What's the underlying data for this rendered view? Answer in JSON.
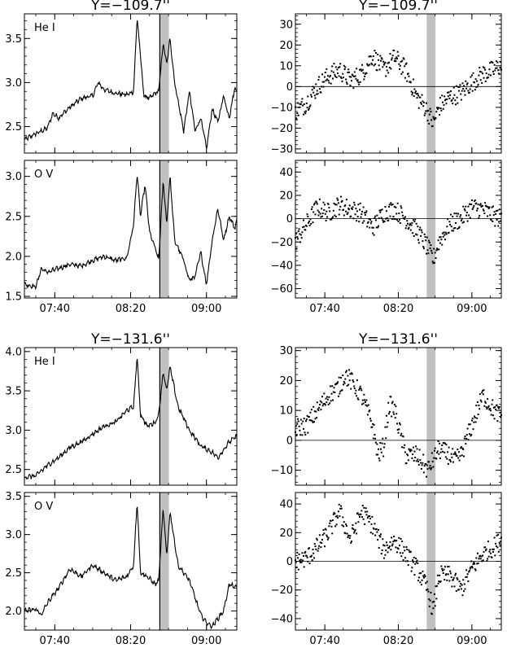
{
  "chart_data": [
    {
      "type": "line",
      "title": "Y=−109.7''",
      "label": "He I",
      "xlim": [
        7.4,
        9.2667
      ],
      "ylim": [
        2.2,
        3.78
      ],
      "xticks": [
        "07:40",
        "08:20",
        "09:00"
      ],
      "xtick_values": [
        7.6667,
        8.3333,
        9.0
      ],
      "yticks": [
        "2.5",
        "3.0",
        "3.5"
      ],
      "ytick_values": [
        2.5,
        3.0,
        3.5
      ],
      "shade": [
        8.59,
        8.67
      ],
      "marker_line": 8.59,
      "x": [
        7.4,
        7.5,
        7.6,
        7.65,
        7.7,
        7.8,
        7.9,
        8.0,
        8.05,
        8.1,
        8.2,
        8.3,
        8.36,
        8.39,
        8.42,
        8.45,
        8.5,
        8.55,
        8.58,
        8.62,
        8.65,
        8.68,
        8.72,
        8.8,
        8.85,
        8.9,
        8.95,
        9.0,
        9.05,
        9.1,
        9.15,
        9.2,
        9.25,
        9.2667
      ],
      "y": [
        2.35,
        2.42,
        2.48,
        2.65,
        2.6,
        2.72,
        2.82,
        2.85,
        3.0,
        2.92,
        2.88,
        2.86,
        2.9,
        3.75,
        3.3,
        2.85,
        2.82,
        2.88,
        2.9,
        3.45,
        3.2,
        3.5,
        3.0,
        2.45,
        2.9,
        2.45,
        2.6,
        2.25,
        2.7,
        2.55,
        2.85,
        2.6,
        2.95,
        2.9
      ]
    },
    {
      "type": "line",
      "title": "",
      "label": "O V",
      "xlim": [
        7.4,
        9.2667
      ],
      "ylim": [
        1.48,
        3.2
      ],
      "xticks": [
        "07:40",
        "08:20",
        "09:00"
      ],
      "xtick_values": [
        7.6667,
        8.3333,
        9.0
      ],
      "yticks": [
        "1.5",
        "2.0",
        "2.5",
        "3.0"
      ],
      "ytick_values": [
        1.5,
        2.0,
        2.5,
        3.0
      ],
      "shade": [
        8.59,
        8.67
      ],
      "marker_line": 8.59,
      "x": [
        7.4,
        7.5,
        7.55,
        7.6,
        7.7,
        7.8,
        7.9,
        8.0,
        8.1,
        8.2,
        8.3,
        8.36,
        8.39,
        8.42,
        8.46,
        8.5,
        8.55,
        8.58,
        8.62,
        8.65,
        8.68,
        8.72,
        8.8,
        8.85,
        8.9,
        8.95,
        9.0,
        9.05,
        9.1,
        9.15,
        9.2,
        9.25,
        9.2667
      ],
      "y": [
        1.65,
        1.62,
        1.85,
        1.8,
        1.85,
        1.9,
        1.88,
        1.95,
        2.0,
        1.95,
        1.98,
        2.4,
        3.05,
        2.5,
        2.9,
        2.3,
        2.1,
        1.95,
        2.95,
        2.4,
        3.0,
        2.2,
        1.95,
        1.7,
        1.75,
        2.05,
        1.65,
        2.2,
        2.6,
        2.2,
        2.5,
        2.35,
        2.45
      ]
    },
    {
      "type": "scatter",
      "title": "Y=−109.7''",
      "label": "",
      "xlim": [
        7.4,
        9.2667
      ],
      "ylim": [
        -32,
        35
      ],
      "xticks": [
        "07:40",
        "08:20",
        "09:00"
      ],
      "xtick_values": [
        7.6667,
        8.3333,
        9.0
      ],
      "yticks": [
        "−30",
        "−20",
        "−10",
        "0",
        "10",
        "20",
        "30"
      ],
      "ytick_values": [
        -30,
        -20,
        -10,
        0,
        10,
        20,
        30
      ],
      "shade": [
        8.59,
        8.67
      ],
      "zero_line": 0,
      "x": [
        7.4,
        7.5,
        7.6,
        7.7,
        7.8,
        7.9,
        8.0,
        8.1,
        8.2,
        8.3,
        8.4,
        8.5,
        8.55,
        8.6,
        8.65,
        8.7,
        8.8,
        8.9,
        9.0,
        9.1,
        9.2,
        9.2667
      ],
      "y": [
        -12,
        -8,
        0,
        5,
        8,
        3,
        6,
        15,
        8,
        14,
        8,
        -5,
        -8,
        -12,
        -18,
        -10,
        -5,
        -3,
        2,
        6,
        8,
        10
      ]
    },
    {
      "type": "scatter",
      "title": "",
      "label": "",
      "xlim": [
        7.4,
        9.2667
      ],
      "ylim": [
        -68,
        50
      ],
      "xticks": [
        "07:40",
        "08:20",
        "09:00"
      ],
      "xtick_values": [
        7.6667,
        8.3333,
        9.0
      ],
      "yticks": [
        "−60",
        "−40",
        "−20",
        "0",
        "20",
        "40"
      ],
      "ytick_values": [
        -60,
        -40,
        -20,
        0,
        20,
        40
      ],
      "shade": [
        8.59,
        8.67
      ],
      "zero_line": 0,
      "x": [
        7.4,
        7.5,
        7.6,
        7.7,
        7.8,
        7.9,
        8.0,
        8.1,
        8.2,
        8.3,
        8.4,
        8.5,
        8.6,
        8.65,
        8.7,
        8.8,
        8.9,
        9.0,
        9.1,
        9.2,
        9.2667
      ],
      "y": [
        -20,
        -5,
        10,
        5,
        12,
        8,
        5,
        -8,
        5,
        8,
        0,
        -10,
        -25,
        -35,
        -20,
        -5,
        0,
        10,
        8,
        2,
        0
      ]
    },
    {
      "type": "line",
      "title": "Y=−131.6''",
      "label": "He I",
      "xlim": [
        7.4,
        9.2667
      ],
      "ylim": [
        2.3,
        4.05
      ],
      "xticks": [
        "07:40",
        "08:20",
        "09:00"
      ],
      "xtick_values": [
        7.6667,
        8.3333,
        9.0
      ],
      "yticks": [
        "2.5",
        "3.0",
        "3.5",
        "4.0"
      ],
      "ytick_values": [
        2.5,
        3.0,
        3.5,
        4.0
      ],
      "shade": [
        8.59,
        8.67
      ],
      "marker_line": 8.59,
      "x": [
        7.4,
        7.5,
        7.6,
        7.7,
        7.8,
        7.9,
        8.0,
        8.1,
        8.2,
        8.3,
        8.36,
        8.39,
        8.42,
        8.48,
        8.55,
        8.58,
        8.62,
        8.65,
        8.68,
        8.75,
        8.85,
        8.95,
        9.05,
        9.1,
        9.2,
        9.2667
      ],
      "y": [
        2.4,
        2.42,
        2.55,
        2.65,
        2.78,
        2.85,
        2.95,
        3.05,
        3.1,
        3.25,
        3.3,
        3.95,
        3.2,
        3.05,
        3.1,
        3.2,
        3.75,
        3.5,
        3.8,
        3.3,
        3.0,
        2.8,
        2.72,
        2.65,
        2.85,
        2.92
      ]
    },
    {
      "type": "line",
      "title": "",
      "label": "O V",
      "xlim": [
        7.4,
        9.2667
      ],
      "ylim": [
        1.75,
        3.55
      ],
      "xticks": [
        "07:40",
        "08:20",
        "09:00"
      ],
      "xtick_values": [
        7.6667,
        8.3333,
        9.0
      ],
      "yticks": [
        "2.0",
        "2.5",
        "3.0",
        "3.5"
      ],
      "ytick_values": [
        2.0,
        2.5,
        3.0,
        3.5
      ],
      "shade": [
        8.59,
        8.67
      ],
      "marker_line": 8.59,
      "x": [
        7.4,
        7.5,
        7.55,
        7.6,
        7.7,
        7.8,
        7.9,
        8.0,
        8.1,
        8.2,
        8.3,
        8.36,
        8.39,
        8.42,
        8.48,
        8.55,
        8.58,
        8.62,
        8.65,
        8.68,
        8.75,
        8.85,
        8.95,
        9.0,
        9.05,
        9.15,
        9.2,
        9.2667
      ],
      "y": [
        2.0,
        2.02,
        1.95,
        2.1,
        2.3,
        2.55,
        2.45,
        2.6,
        2.5,
        2.4,
        2.45,
        2.6,
        3.45,
        2.5,
        2.45,
        2.35,
        2.4,
        3.35,
        2.7,
        3.3,
        2.6,
        2.4,
        1.95,
        1.85,
        1.8,
        2.0,
        2.35,
        2.3
      ]
    },
    {
      "type": "scatter",
      "title": "Y=−131.6''",
      "label": "",
      "xlim": [
        7.4,
        9.2667
      ],
      "ylim": [
        -15,
        31
      ],
      "xticks": [
        "07:40",
        "08:20",
        "09:00"
      ],
      "xtick_values": [
        7.6667,
        8.3333,
        9.0
      ],
      "yticks": [
        "−10",
        "0",
        "10",
        "20",
        "30"
      ],
      "ytick_values": [
        -10,
        0,
        10,
        20,
        30
      ],
      "shade": [
        8.59,
        8.67
      ],
      "zero_line": 0,
      "x": [
        7.4,
        7.5,
        7.6,
        7.7,
        7.8,
        7.85,
        7.9,
        8.0,
        8.1,
        8.15,
        8.2,
        8.25,
        8.3,
        8.4,
        8.5,
        8.6,
        8.7,
        8.8,
        8.85,
        8.9,
        9.0,
        9.1,
        9.2,
        9.2667
      ],
      "y": [
        4,
        5,
        10,
        15,
        18,
        22,
        20,
        15,
        5,
        -5,
        -2,
        12,
        10,
        -5,
        -5,
        -10,
        -3,
        -5,
        -7,
        -5,
        5,
        15,
        10,
        8
      ]
    },
    {
      "type": "scatter",
      "title": "",
      "label": "",
      "xlim": [
        7.4,
        9.2667
      ],
      "ylim": [
        -48,
        48
      ],
      "xticks": [
        "07:40",
        "08:20",
        "09:00"
      ],
      "xtick_values": [
        7.6667,
        8.3333,
        9.0
      ],
      "yticks": [
        "−40",
        "−20",
        "0",
        "20",
        "40"
      ],
      "ytick_values": [
        -40,
        -20,
        0,
        20,
        40
      ],
      "shade": [
        8.59,
        8.67
      ],
      "zero_line": 0,
      "x": [
        7.4,
        7.5,
        7.6,
        7.7,
        7.8,
        7.85,
        7.9,
        8.0,
        8.05,
        8.1,
        8.2,
        8.3,
        8.4,
        8.5,
        8.6,
        8.65,
        8.7,
        8.8,
        8.9,
        9.0,
        9.1,
        9.2,
        9.2667
      ],
      "y": [
        0,
        2,
        10,
        20,
        35,
        25,
        15,
        35,
        30,
        25,
        8,
        15,
        5,
        -5,
        -20,
        -35,
        -10,
        -10,
        -20,
        -5,
        5,
        10,
        15
      ]
    }
  ]
}
